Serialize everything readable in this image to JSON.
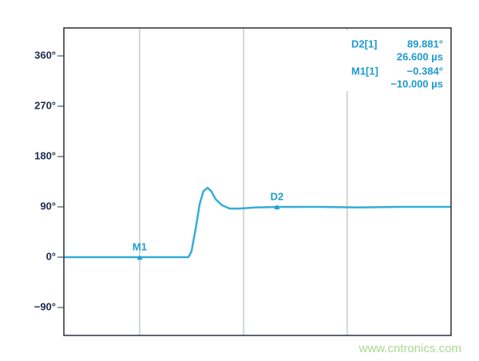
{
  "chart_data": {
    "type": "line",
    "series": [
      {
        "color": "#35aed6",
        "x": [
          -30.2,
          -10,
          3.0,
          3.8,
          4.9,
          6.0,
          7.0,
          8.1,
          9.1,
          10.2,
          11.9,
          14.0,
          16.6,
          20.9,
          26.6,
          37.9,
          48.5,
          59.1,
          73.0
        ],
        "values": [
          0,
          0,
          0,
          10,
          50,
          95,
          118,
          124,
          118,
          104,
          93,
          87,
          87,
          89,
          89.881,
          90,
          89,
          90,
          90
        ]
      }
    ],
    "xlim": [
      -30.2,
      73.0
    ],
    "xgrid": [
      -10,
      17.7,
      45.3
    ],
    "ylim": [
      -140,
      410
    ],
    "yticks": [
      {
        "value": 360,
        "label": "360°"
      },
      {
        "value": 270,
        "label": "270°"
      },
      {
        "value": 180,
        "label": "180°"
      },
      {
        "value": 90,
        "label": "90°"
      },
      {
        "value": 0,
        "label": "0°"
      },
      {
        "value": -90,
        "label": "−90°"
      }
    ],
    "grid": true,
    "markers": [
      {
        "name": "D2",
        "trace": "D2[1]",
        "x": 26.6,
        "y": 89.881,
        "y_label": "89.881°",
        "x_label": "26.600 µs"
      },
      {
        "name": "M1",
        "trace": "M1[1]",
        "x": -10,
        "y": -0.384,
        "y_label": "−0.384°",
        "x_label": "−10.000 µs"
      }
    ],
    "watermark": "www.cntronics.com"
  }
}
